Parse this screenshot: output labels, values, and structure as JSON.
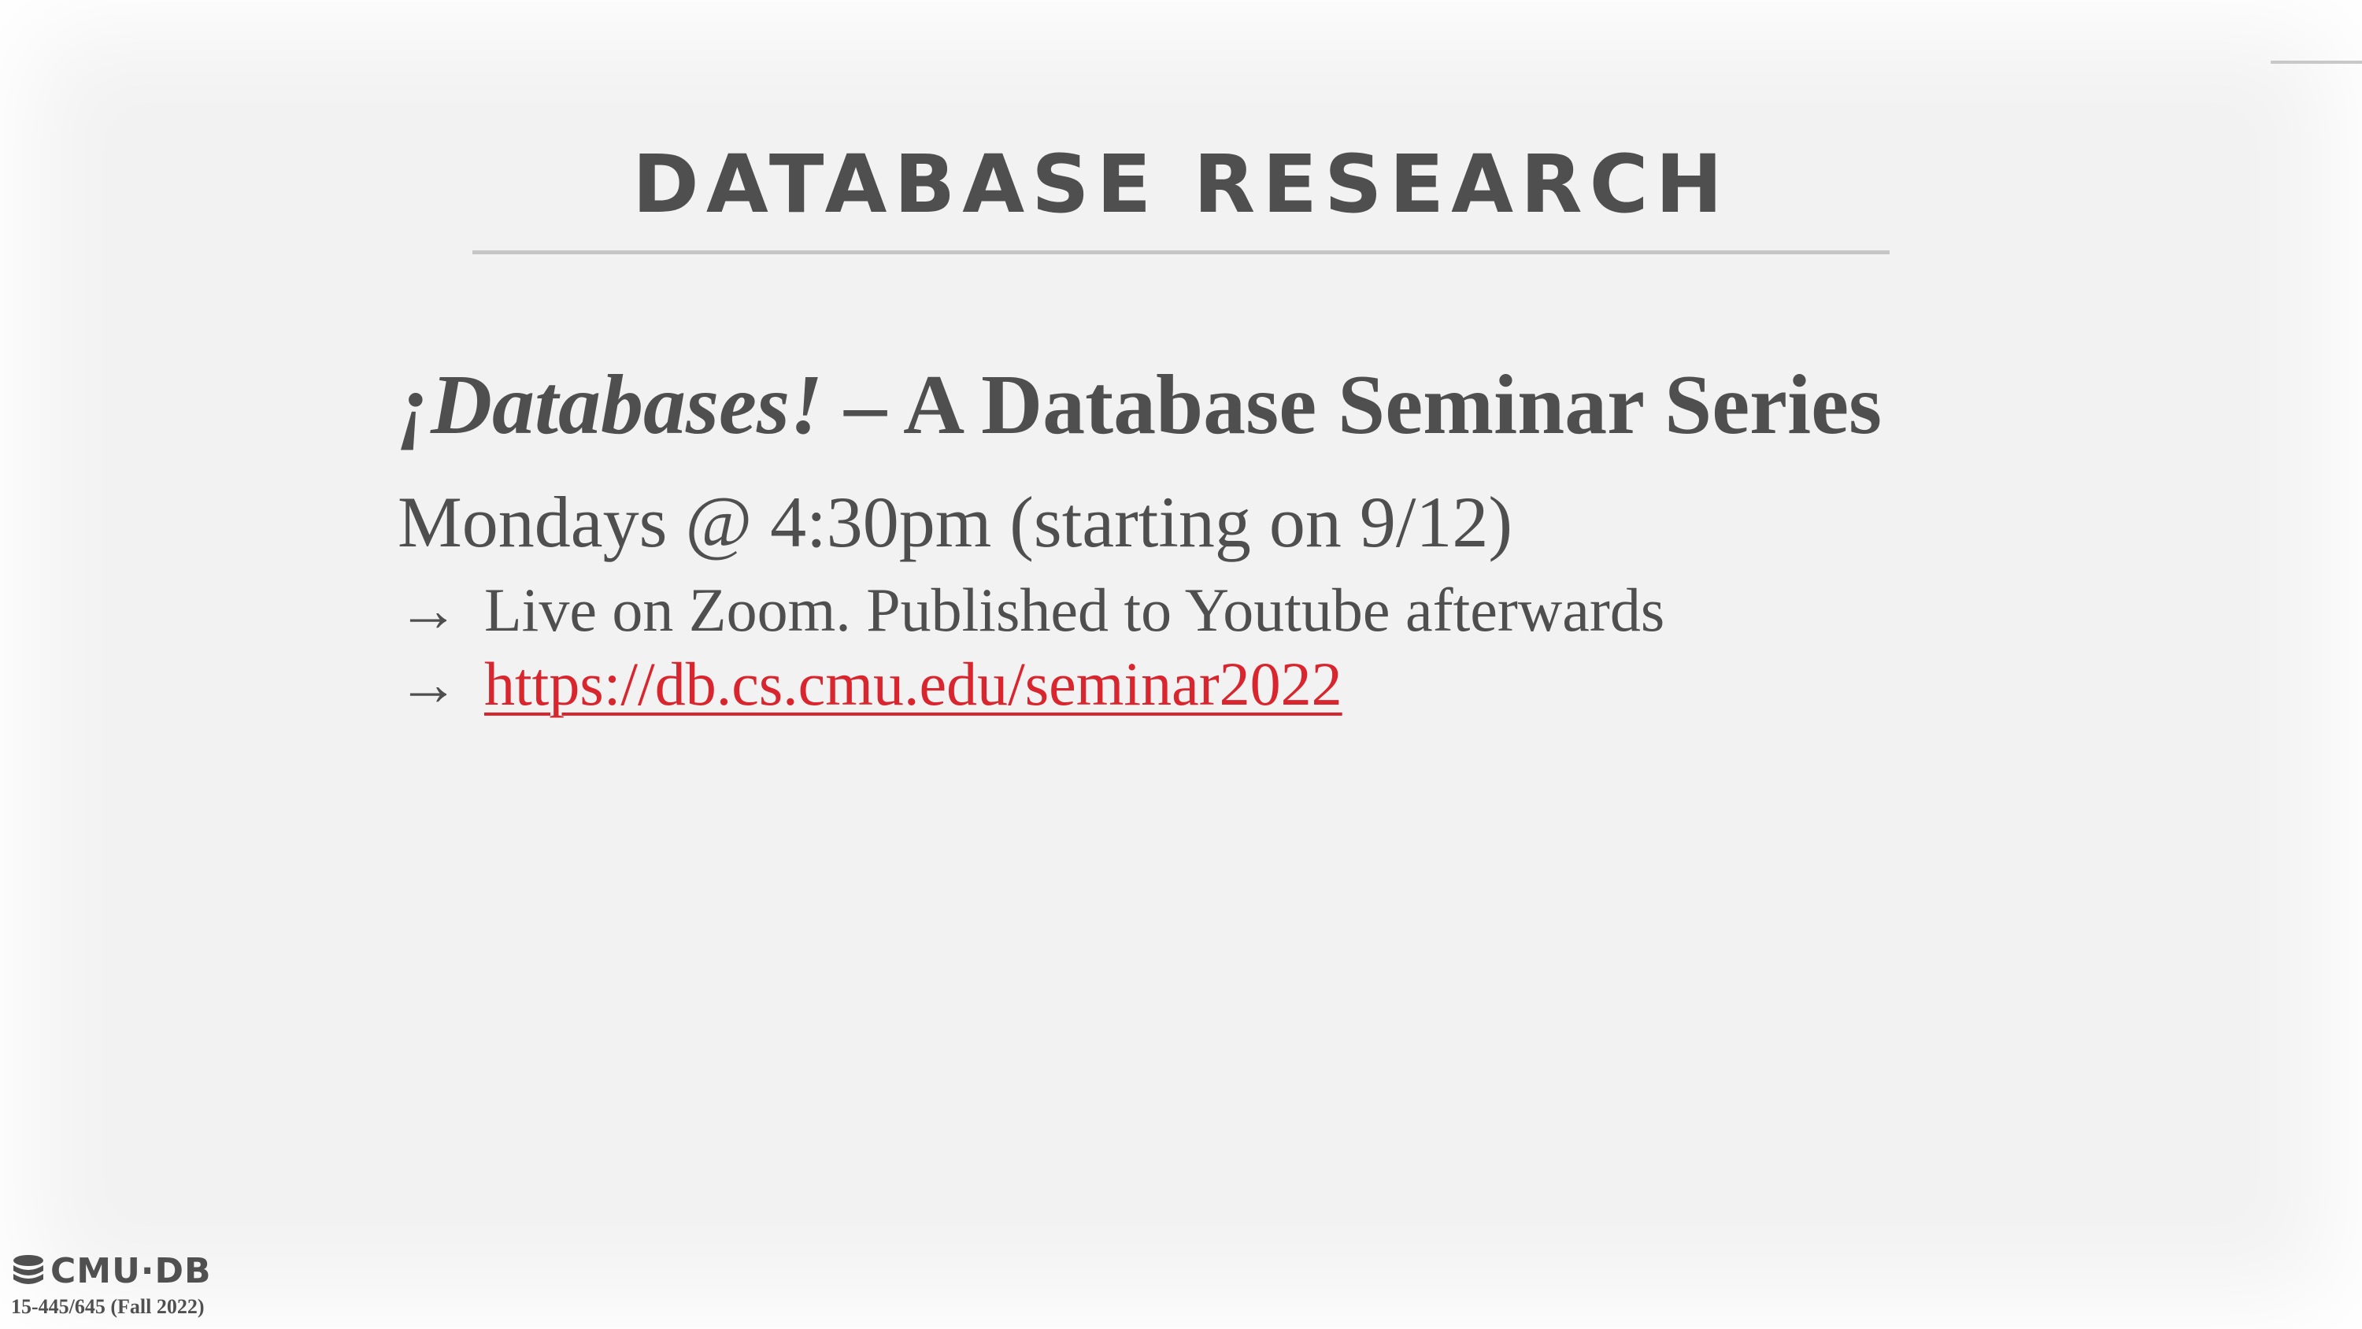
{
  "slide": {
    "title": "DATABASE RESEARCH",
    "heading_italic": "¡Databases!",
    "heading_rest": " – A Database Seminar Series",
    "subheading": "Mondays @ 4:30pm (starting on 9/12)",
    "bullets": [
      {
        "arrow": "→",
        "text": "Live on Zoom. Published to Youtube afterwards"
      },
      {
        "arrow": "→",
        "link": "https://db.cs.cmu.edu/seminar2022"
      }
    ]
  },
  "footer": {
    "logo_text": "CMU·DB",
    "course": "15-445/645 (Fall 2022)"
  },
  "colors": {
    "background": "#f2f2f2",
    "text": "#4f4f4f",
    "link": "#d9262e",
    "rule": "#c6c6c6"
  },
  "icons": {
    "logo": "database-stack-icon"
  }
}
